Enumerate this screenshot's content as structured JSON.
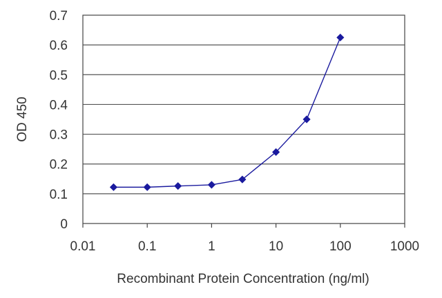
{
  "chart_data": {
    "type": "line",
    "title": "",
    "xlabel": "Recombinant Protein Concentration (ng/ml)",
    "ylabel": "OD 450",
    "x_scale": "log",
    "xlim": [
      0.01,
      1000
    ],
    "ylim": [
      0,
      0.7
    ],
    "x_ticks": [
      "0.01",
      "0.1",
      "1",
      "10",
      "100",
      "1000"
    ],
    "y_ticks": [
      "0",
      "0.1",
      "0.2",
      "0.3",
      "0.4",
      "0.5",
      "0.6",
      "0.7"
    ],
    "grid": "horizontal",
    "series": [
      {
        "x": [
          0.03,
          0.1,
          0.3,
          1,
          3,
          10,
          30,
          100
        ],
        "y": [
          0.122,
          0.122,
          0.126,
          0.13,
          0.148,
          0.24,
          0.35,
          0.625
        ],
        "color": "#1a1a9e",
        "marker": "diamond"
      }
    ]
  }
}
